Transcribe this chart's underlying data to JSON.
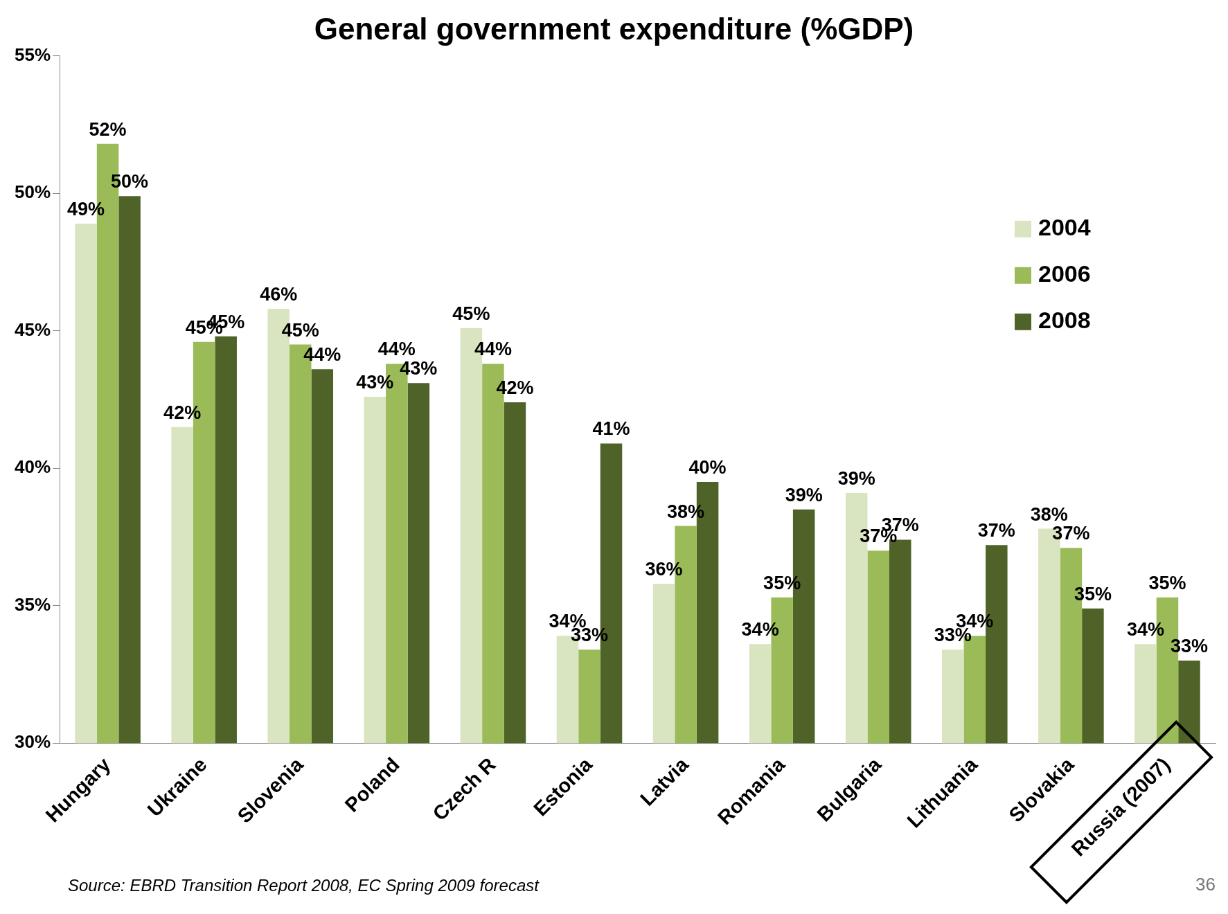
{
  "chart_data": {
    "type": "bar",
    "title": "General government expenditure (%GDP)",
    "categories": [
      "Hungary",
      "Ukraine",
      "Slovenia",
      "Poland",
      "Czech R",
      "Estonia",
      "Latvia",
      "Romania",
      "Bulgaria",
      "Lithuania",
      "Slovakia",
      "Russia (2007)"
    ],
    "series": [
      {
        "name": "2004",
        "color": "#d9e4c0",
        "values": [
          48.9,
          41.5,
          45.8,
          42.6,
          45.1,
          33.9,
          35.8,
          33.6,
          39.1,
          33.4,
          37.8,
          33.6
        ],
        "value_labels": [
          "49%",
          "42%",
          "46%",
          "43%",
          "45%",
          "34%",
          "36%",
          "34%",
          "39%",
          "33%",
          "38%",
          "34%"
        ]
      },
      {
        "name": "2006",
        "color": "#9bbb59",
        "values": [
          51.8,
          44.6,
          44.5,
          43.8,
          43.8,
          33.4,
          37.9,
          35.3,
          37.0,
          33.9,
          37.1,
          35.3
        ],
        "value_labels": [
          "52%",
          "45%",
          "45%",
          "44%",
          "44%",
          "33%",
          "38%",
          "35%",
          "37%",
          "34%",
          "37%",
          "35%"
        ]
      },
      {
        "name": "2008",
        "color": "#4f6228",
        "values": [
          49.9,
          44.8,
          43.6,
          43.1,
          42.4,
          40.9,
          39.5,
          38.5,
          37.4,
          37.2,
          34.9,
          33.0
        ],
        "value_labels": [
          "50%",
          "45%",
          "44%",
          "43%",
          "42%",
          "41%",
          "40%",
          "39%",
          "37%",
          "37%",
          "35%",
          "33%"
        ]
      }
    ],
    "ylim": [
      30,
      55
    ],
    "yticks": [
      {
        "value": 30,
        "label": "30%"
      },
      {
        "value": 35,
        "label": "35%"
      },
      {
        "value": 40,
        "label": "40%"
      },
      {
        "value": 45,
        "label": "45%"
      },
      {
        "value": 50,
        "label": "50%"
      },
      {
        "value": 55,
        "label": "55%"
      }
    ],
    "grid": false,
    "legend": "top right",
    "annotations": [
      "Source: EBRD Transition Report 2008, EC Spring 2009 forecast",
      "36"
    ]
  }
}
